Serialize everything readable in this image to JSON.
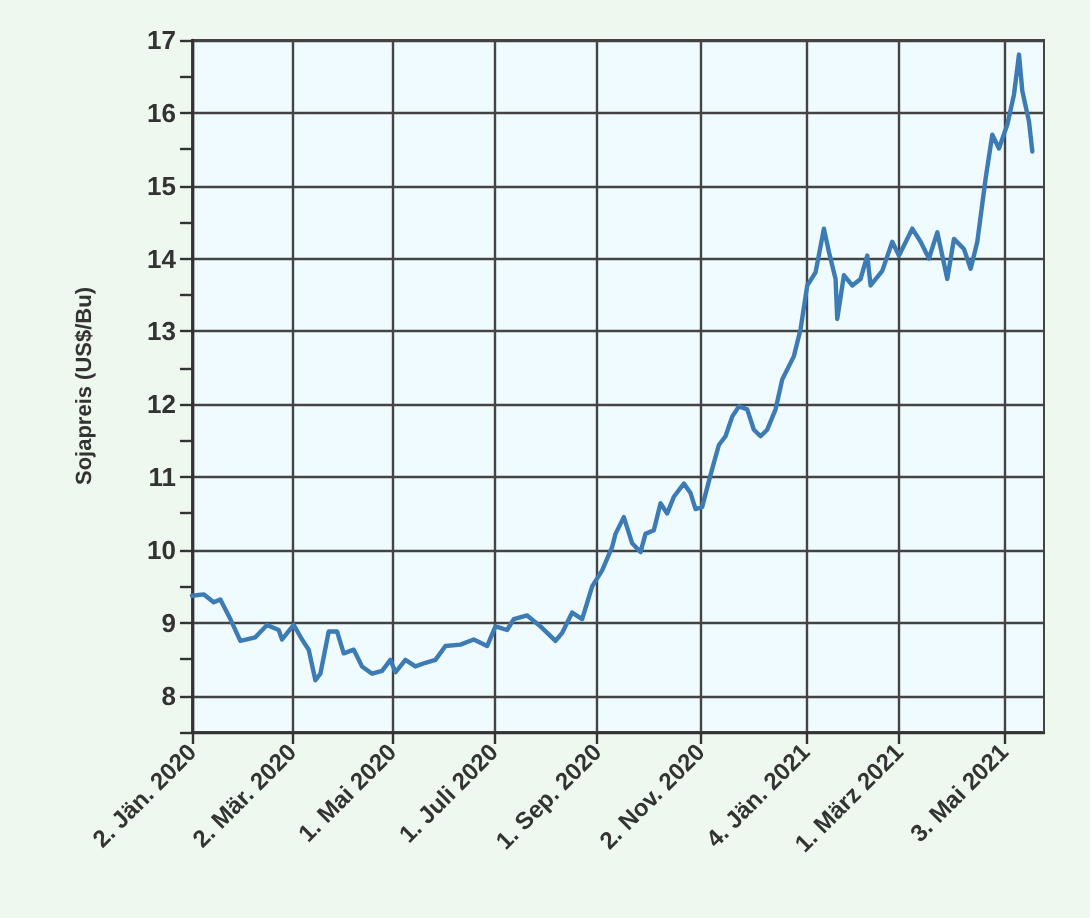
{
  "chart_data": {
    "type": "line",
    "ylabel": "Sojapreis (US$/Bu)",
    "x": [
      "2020-01-02",
      "2020-01-09",
      "2020-01-15",
      "2020-01-19",
      "2020-01-25",
      "2020-01-31",
      "2020-02-09",
      "2020-02-16",
      "2020-02-23",
      "2020-02-25",
      "2020-03-03",
      "2020-03-08",
      "2020-03-12",
      "2020-03-16",
      "2020-03-19",
      "2020-03-24",
      "2020-03-29",
      "2020-04-02",
      "2020-04-08",
      "2020-04-13",
      "2020-04-19",
      "2020-04-25",
      "2020-04-30",
      "2020-05-03",
      "2020-05-09",
      "2020-05-15",
      "2020-05-21",
      "2020-05-27",
      "2020-06-02",
      "2020-06-11",
      "2020-06-19",
      "2020-06-27",
      "2020-07-02",
      "2020-07-09",
      "2020-07-13",
      "2020-07-21",
      "2020-07-29",
      "2020-08-07",
      "2020-08-11",
      "2020-08-17",
      "2020-08-23",
      "2020-08-29",
      "2020-09-04",
      "2020-09-10",
      "2020-09-12",
      "2020-09-17",
      "2020-09-22",
      "2020-09-27",
      "2020-09-30",
      "2020-10-05",
      "2020-10-09",
      "2020-10-13",
      "2020-10-17",
      "2020-10-23",
      "2020-10-27",
      "2020-10-30",
      "2020-11-03",
      "2020-11-08",
      "2020-11-13",
      "2020-11-17",
      "2020-11-21",
      "2020-11-25",
      "2020-11-30",
      "2020-12-04",
      "2020-12-08",
      "2020-12-12",
      "2020-12-17",
      "2020-12-21",
      "2020-12-28",
      "2021-01-01",
      "2021-01-05",
      "2021-01-10",
      "2021-01-15",
      "2021-01-18",
      "2021-01-22",
      "2021-01-23",
      "2021-01-27",
      "2021-02-01",
      "2021-02-06",
      "2021-02-10",
      "2021-02-12",
      "2021-02-19",
      "2021-02-25",
      "2021-03-01",
      "2021-03-09",
      "2021-03-14",
      "2021-03-19",
      "2021-03-24",
      "2021-03-30",
      "2021-04-03",
      "2021-04-09",
      "2021-04-13",
      "2021-04-17",
      "2021-04-22",
      "2021-04-26",
      "2021-04-30",
      "2021-05-05",
      "2021-05-09",
      "2021-05-12",
      "2021-05-14",
      "2021-05-18",
      "2021-05-20"
    ],
    "series": [
      {
        "color": "#3d7bb4",
        "values": [
          9.37,
          9.39,
          9.28,
          9.32,
          9.05,
          8.75,
          8.8,
          8.97,
          8.9,
          8.77,
          8.97,
          8.77,
          8.63,
          8.21,
          8.3,
          8.88,
          8.88,
          8.58,
          8.63,
          8.4,
          8.3,
          8.34,
          8.49,
          8.32,
          8.49,
          8.4,
          8.45,
          8.49,
          8.68,
          8.7,
          8.77,
          8.68,
          8.95,
          8.9,
          9.05,
          9.1,
          8.95,
          8.75,
          8.86,
          9.14,
          9.05,
          9.5,
          9.72,
          10.04,
          10.22,
          10.45,
          10.09,
          9.97,
          10.22,
          10.27,
          10.64,
          10.5,
          10.73,
          10.91,
          10.78,
          10.56,
          10.59,
          11.03,
          11.44,
          11.56,
          11.83,
          11.97,
          11.93,
          11.65,
          11.56,
          11.65,
          11.93,
          12.34,
          12.66,
          13.03,
          13.63,
          13.81,
          14.41,
          14.09,
          13.72,
          13.17,
          13.77,
          13.63,
          13.72,
          14.04,
          13.63,
          13.83,
          14.23,
          14.04,
          14.41,
          14.23,
          14.0,
          14.36,
          13.72,
          14.27,
          14.13,
          13.86,
          14.23,
          15.1,
          15.7,
          15.51,
          15.84,
          16.25,
          16.8,
          16.3,
          15.88,
          15.47
        ]
      }
    ],
    "xlim": [
      "2020-01-02",
      "2021-05-27"
    ],
    "xticks": [
      {
        "value": "2020-01-02",
        "label": "2. Jän. 2020"
      },
      {
        "value": "2020-03-02",
        "label": "2. Mär. 2020"
      },
      {
        "value": "2020-05-01",
        "label": "1. Mai 2020"
      },
      {
        "value": "2020-07-01",
        "label": "1. Juli 2020"
      },
      {
        "value": "2020-09-01",
        "label": "1. Sep. 2020"
      },
      {
        "value": "2020-11-02",
        "label": "2. Nov. 2020"
      },
      {
        "value": "2021-01-04",
        "label": "4. Jän. 2021"
      },
      {
        "value": "2021-03-01",
        "label": "1. März 2021"
      },
      {
        "value": "2021-05-03",
        "label": "3. Mai 2021"
      }
    ],
    "ylim": [
      7.5,
      17
    ],
    "yticks": [
      {
        "value": 7.5,
        "label": null
      },
      8,
      {
        "value": 8.5,
        "label": null
      },
      9,
      {
        "value": 9.5,
        "label": null
      },
      10,
      {
        "value": 10.5,
        "label": null
      },
      11,
      {
        "value": 11.5,
        "label": null
      },
      12,
      {
        "value": 12.5,
        "label": null
      },
      13,
      {
        "value": 13.5,
        "label": null
      },
      14,
      {
        "value": 14.5,
        "label": null
      },
      15,
      {
        "value": 15.5,
        "label": null
      },
      16,
      {
        "value": 16.5,
        "label": null
      },
      17
    ],
    "grid": true,
    "marker": "none",
    "line_style": "solid"
  }
}
